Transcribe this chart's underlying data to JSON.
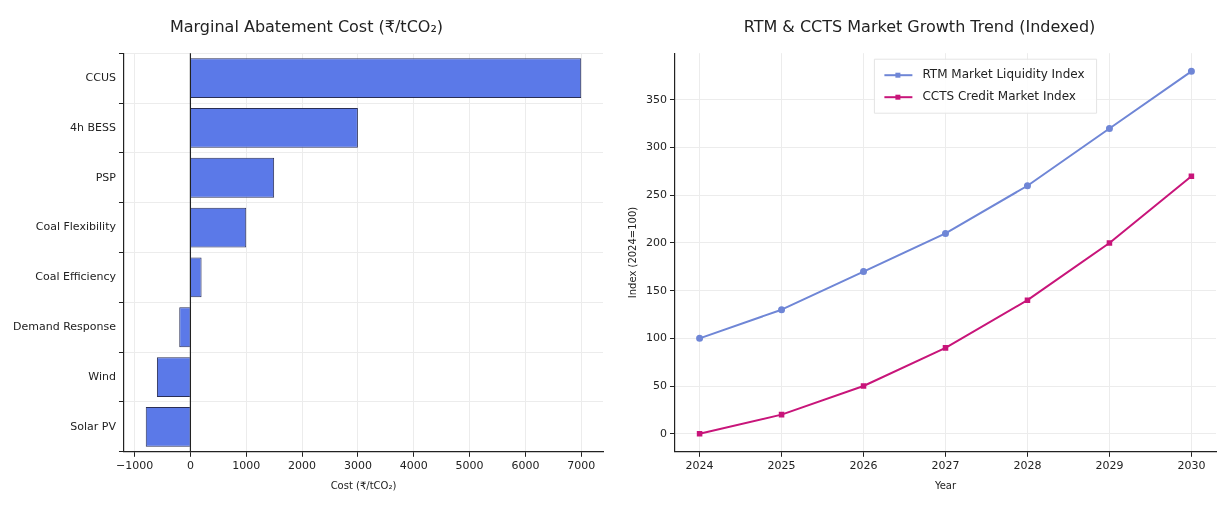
{
  "chart_data": [
    {
      "type": "bar",
      "orientation": "horizontal",
      "title": "Marginal Abatement Cost (₹/tCO₂)",
      "xlabel": "Cost (₹/tCO₂)",
      "categories": [
        "CCUS",
        "4h BESS",
        "PSP",
        "Coal Flexibility",
        "Coal Efficiency",
        "Demand Response",
        "Wind",
        "Solar PV"
      ],
      "values": [
        7000,
        3000,
        1500,
        1000,
        200,
        -200,
        -600,
        -800
      ],
      "color": "#5b79e8",
      "xlim": [
        -1190,
        7390
      ],
      "xticks": [
        {
          "value": -1000,
          "label": "−1000"
        },
        0,
        1000,
        2000,
        3000,
        4000,
        5000,
        6000,
        7000
      ],
      "ref_lines": [
        {
          "axis": "x",
          "value": 0,
          "color": "#222222"
        }
      ],
      "grid": true,
      "legend": false
    },
    {
      "type": "line",
      "title": "RTM & CCTS Market Growth Trend (Indexed)",
      "xlabel": "Year",
      "ylabel": "Index (2024=100)",
      "x": [
        2024,
        2025,
        2026,
        2027,
        2028,
        2029,
        2030
      ],
      "series": [
        {
          "name": "RTM Market Liquidity Index",
          "color": "#6f86d6",
          "values": [
            100,
            130,
            170,
            210,
            260,
            320,
            380
          ],
          "marker": "circle"
        },
        {
          "name": "CCTS Credit Market Index",
          "color": "#c8157a",
          "values": [
            0,
            20,
            50,
            90,
            140,
            200,
            270
          ],
          "marker": "square"
        }
      ],
      "xlim": [
        2023.7,
        2030.3
      ],
      "xticks": [
        2024,
        2025,
        2026,
        2027,
        2028,
        2029,
        2030
      ],
      "ylim": [
        -19,
        399
      ],
      "yticks": [
        0,
        50,
        100,
        150,
        200,
        250,
        300,
        350
      ],
      "grid": true,
      "legend": "top"
    }
  ]
}
